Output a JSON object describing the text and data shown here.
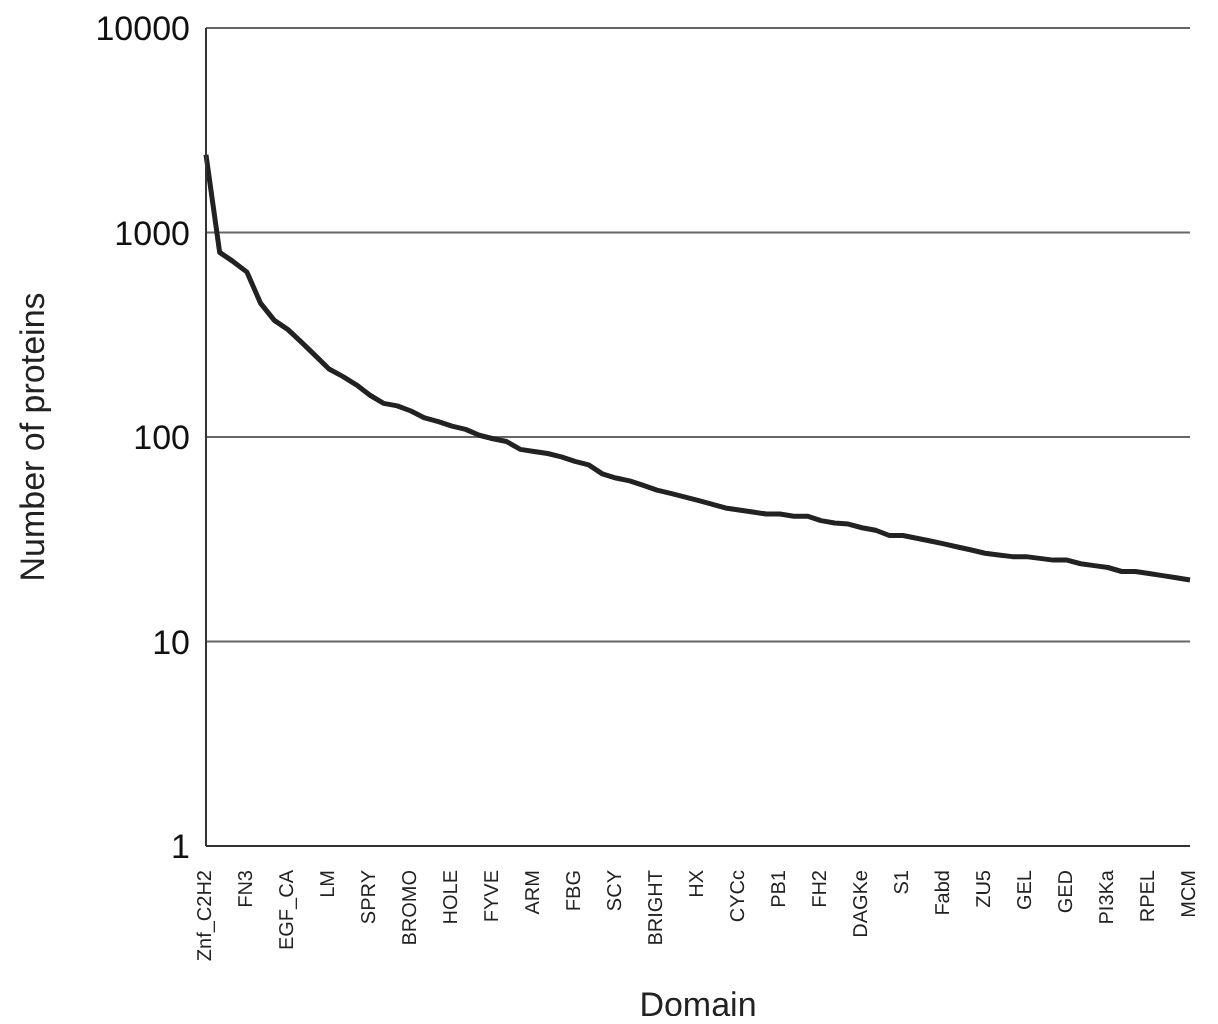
{
  "chart_data": {
    "type": "line",
    "xlabel": "Domain",
    "ylabel": "Number of proteins",
    "categories": [
      "Znf_C2H2",
      null,
      null,
      "FN3",
      null,
      null,
      "EGF_CA",
      null,
      null,
      "LM",
      null,
      null,
      "SPRY",
      null,
      null,
      "BROMO",
      null,
      null,
      "HOLE",
      null,
      null,
      "FYVE",
      null,
      null,
      "ARM",
      null,
      null,
      "FBG",
      null,
      null,
      "SCY",
      null,
      null,
      "BRIGHT",
      null,
      null,
      "HX",
      null,
      null,
      "CYCc",
      null,
      null,
      "PB1",
      null,
      null,
      "FH2",
      null,
      null,
      "DAGKe",
      null,
      null,
      "S1",
      null,
      null,
      "Fabd",
      null,
      null,
      "ZU5",
      null,
      null,
      "GEL",
      null,
      null,
      "GED",
      null,
      null,
      "PI3Ka",
      null,
      null,
      "RPEL",
      null,
      null,
      "MCM"
    ],
    "series": [
      {
        "color": "#222222",
        "values": [
          2400,
          800,
          720,
          640,
          450,
          372,
          335,
          290,
          250,
          215,
          198,
          180,
          160,
          146,
          142,
          134,
          124,
          119,
          113,
          109,
          102,
          98,
          95,
          87,
          85,
          83,
          80,
          76,
          73,
          66,
          63,
          61,
          58,
          55,
          53,
          51,
          49,
          47,
          45,
          44,
          43,
          42,
          42,
          41,
          41,
          39,
          38,
          37.5,
          36,
          35,
          33,
          33,
          32,
          31,
          30,
          29,
          28,
          27,
          26.5,
          26,
          26,
          25.5,
          25,
          25,
          24,
          23.5,
          23,
          22,
          22,
          21.5,
          21,
          20.5,
          20
        ]
      }
    ],
    "log": "y",
    "ylim": [
      1,
      10000
    ],
    "yticks": [
      1,
      10,
      100,
      1000,
      10000
    ],
    "grid": "y",
    "marker": "none",
    "line_style": "solid"
  }
}
